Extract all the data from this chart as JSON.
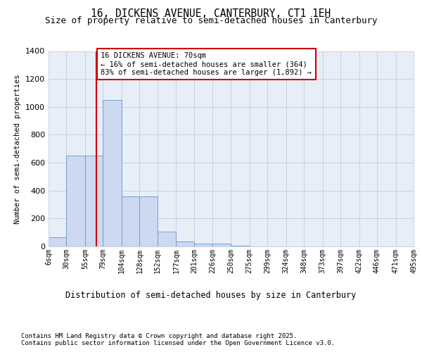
{
  "title": "16, DICKENS AVENUE, CANTERBURY, CT1 1EH",
  "subtitle": "Size of property relative to semi-detached houses in Canterbury",
  "xlabel": "Distribution of semi-detached houses by size in Canterbury",
  "ylabel": "Number of semi-detached properties",
  "footnote1": "Contains HM Land Registry data © Crown copyright and database right 2025.",
  "footnote2": "Contains public sector information licensed under the Open Government Licence v3.0.",
  "annotation_title": "16 DICKENS AVENUE: 70sqm",
  "annotation_line1": "← 16% of semi-detached houses are smaller (364)",
  "annotation_line2": "83% of semi-detached houses are larger (1,892) →",
  "property_size_sqm": 70,
  "bar_left_edges": [
    6,
    30,
    55,
    79,
    104,
    128,
    152,
    177,
    201,
    226,
    250,
    275,
    299,
    324,
    348,
    373,
    397,
    422,
    446,
    471
  ],
  "bar_widths": [
    24,
    25,
    24,
    25,
    24,
    24,
    25,
    24,
    25,
    24,
    25,
    24,
    25,
    24,
    25,
    24,
    25,
    24,
    25,
    24
  ],
  "bar_heights": [
    65,
    650,
    650,
    1050,
    360,
    360,
    105,
    35,
    20,
    20,
    5,
    0,
    0,
    0,
    0,
    0,
    0,
    0,
    0,
    0
  ],
  "tick_labels": [
    "6sqm",
    "30sqm",
    "55sqm",
    "79sqm",
    "104sqm",
    "128sqm",
    "152sqm",
    "177sqm",
    "201sqm",
    "226sqm",
    "250sqm",
    "275sqm",
    "299sqm",
    "324sqm",
    "348sqm",
    "373sqm",
    "397sqm",
    "422sqm",
    "446sqm",
    "471sqm",
    "495sqm"
  ],
  "tick_positions": [
    6,
    30,
    55,
    79,
    104,
    128,
    152,
    177,
    201,
    226,
    250,
    275,
    299,
    324,
    348,
    373,
    397,
    422,
    446,
    471,
    495
  ],
  "ylim": [
    0,
    1400
  ],
  "xlim": [
    6,
    495
  ],
  "bar_color": "#ccd9f0",
  "bar_edge_color": "#6699cc",
  "vline_color": "#cc0000",
  "bg_color": "#e8eef8",
  "grid_color": "#c8d0e0",
  "annotation_box_color": "#cc0000",
  "title_fontsize": 10.5,
  "subtitle_fontsize": 9,
  "ylabel_fontsize": 7.5,
  "tick_fontsize": 7,
  "annotation_fontsize": 7.5,
  "footnote_fontsize": 6.5,
  "xlabel_fontsize": 8.5
}
